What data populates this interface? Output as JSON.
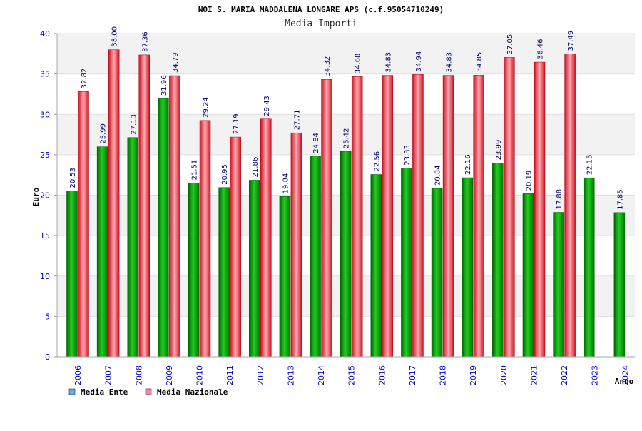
{
  "chart_data": {
    "type": "bar",
    "title": "NOI S. MARIA MADDALENA LONGARE APS (c.f.95054710249)",
    "subtitle": "Media Importi",
    "xlabel": "Anno",
    "ylabel": "Euro",
    "ylim": [
      0,
      40
    ],
    "yticks": [
      "0",
      "5",
      "10",
      "15",
      "20",
      "25",
      "30",
      "35",
      "40"
    ],
    "categories": [
      "2006",
      "2007",
      "2008",
      "2009",
      "2010",
      "2011",
      "2012",
      "2013",
      "2014",
      "2015",
      "2016",
      "2017",
      "2018",
      "2019",
      "2020",
      "2021",
      "2022",
      "2023",
      "2024"
    ],
    "series": [
      {
        "name": "Media Ente",
        "color": "#00aa00",
        "legend_color": "#66aaee",
        "values": [
          20.53,
          25.99,
          27.13,
          31.96,
          21.51,
          20.95,
          21.86,
          19.84,
          24.84,
          25.42,
          22.56,
          23.33,
          20.84,
          22.16,
          23.99,
          20.19,
          17.88,
          22.15,
          17.85
        ],
        "labels": [
          "20.53",
          "25.99",
          "27.13",
          "31.96",
          "21.51",
          "20.95",
          "21.86",
          "19.84",
          "24.84",
          "25.42",
          "22.56",
          "23.33",
          "20.84",
          "22.16",
          "23.99",
          "20.19",
          "17.88",
          "22.15",
          "17.85"
        ]
      },
      {
        "name": "Media Nazionale",
        "color": "#dd2233",
        "legend_color": "#ee88aa",
        "values": [
          32.82,
          38.0,
          37.36,
          34.79,
          29.24,
          27.19,
          29.43,
          27.71,
          34.32,
          34.68,
          34.83,
          34.94,
          34.83,
          34.85,
          37.05,
          36.46,
          37.49,
          null,
          null
        ],
        "labels": [
          "32.82",
          "38.00",
          "37.36",
          "34.79",
          "29.24",
          "27.19",
          "29.43",
          "27.71",
          "34.32",
          "34.68",
          "34.83",
          "34.94",
          "34.83",
          "34.85",
          "37.05",
          "36.46",
          "37.49",
          null,
          null
        ]
      }
    ],
    "grid": true,
    "legend": "bottom-left"
  }
}
